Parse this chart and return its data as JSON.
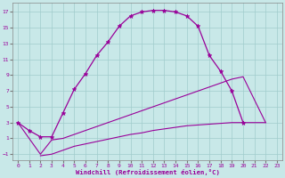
{
  "xlabel": "Windchill (Refroidissement éolien,°C)",
  "line_color": "#990099",
  "bg_color": "#c8e8e8",
  "grid_color": "#a0cccc",
  "xlim": [
    -0.5,
    23.5
  ],
  "ylim": [
    -1.8,
    18.2
  ],
  "xticks": [
    0,
    1,
    2,
    3,
    4,
    5,
    6,
    7,
    8,
    9,
    10,
    11,
    12,
    13,
    14,
    15,
    16,
    17,
    18,
    19,
    20,
    21,
    22,
    23
  ],
  "yticks": [
    -1,
    1,
    3,
    5,
    7,
    9,
    11,
    13,
    15,
    17
  ],
  "curve1_x": [
    0,
    1,
    2,
    3,
    4,
    5,
    6,
    7,
    8,
    9,
    10,
    11,
    12,
    13,
    14,
    15,
    16,
    17,
    18,
    19,
    20
  ],
  "curve1_y": [
    3.0,
    2.0,
    1.2,
    1.2,
    4.2,
    7.2,
    9.2,
    11.5,
    13.2,
    15.2,
    16.5,
    17.0,
    17.2,
    17.2,
    17.0,
    16.5,
    15.2,
    11.5,
    9.5,
    7.0,
    3.0
  ],
  "curve2_x": [
    0,
    2,
    3,
    4,
    5,
    6,
    7,
    8,
    9,
    10,
    11,
    12,
    13,
    14,
    15,
    16,
    17,
    18,
    19,
    20,
    22
  ],
  "curve2_y": [
    3.0,
    -1.0,
    0.8,
    1.0,
    1.5,
    2.0,
    2.5,
    3.0,
    3.5,
    4.0,
    4.5,
    5.0,
    5.5,
    6.0,
    6.5,
    7.0,
    7.5,
    8.0,
    8.5,
    8.8,
    3.0
  ],
  "curve3_x": [
    2,
    3,
    4,
    5,
    6,
    7,
    8,
    9,
    10,
    11,
    12,
    13,
    14,
    15,
    16,
    17,
    18,
    19,
    20,
    21,
    22
  ],
  "curve3_y": [
    -1.2,
    -1.0,
    -0.5,
    0.0,
    0.3,
    0.6,
    0.9,
    1.2,
    1.5,
    1.7,
    2.0,
    2.2,
    2.4,
    2.6,
    2.7,
    2.8,
    2.9,
    3.0,
    3.0,
    3.0,
    3.0
  ]
}
